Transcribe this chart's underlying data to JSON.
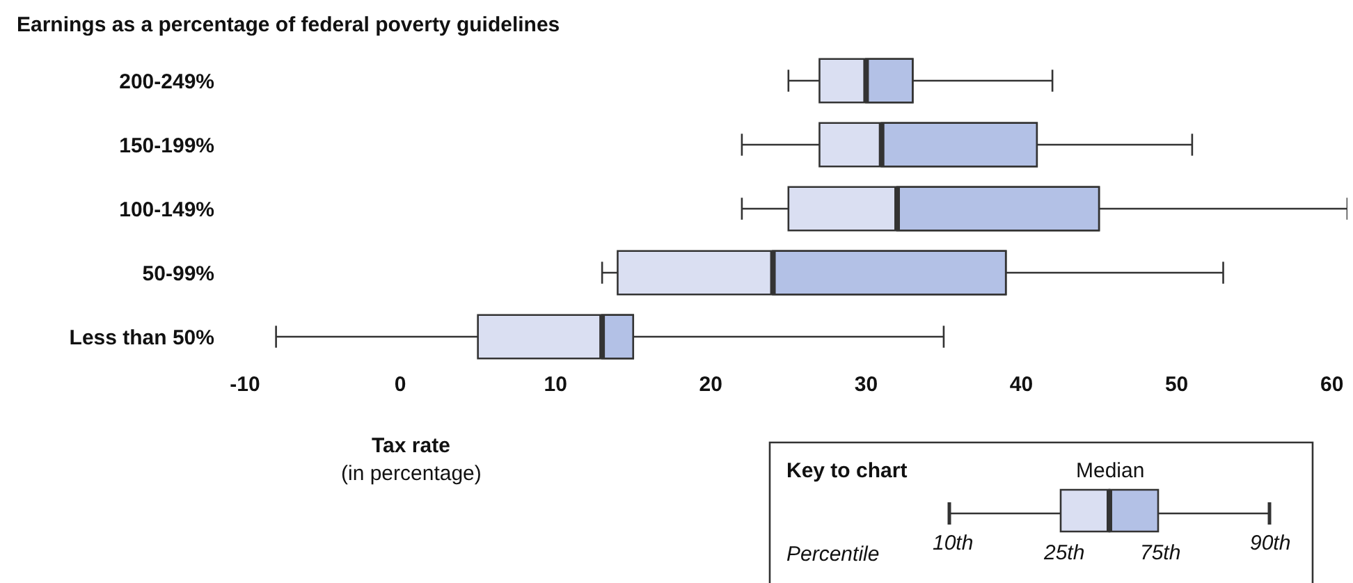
{
  "chart_data": {
    "type": "box",
    "orientation": "horizontal",
    "title": "Earnings as a percentage of federal poverty guidelines",
    "xlabel": "Tax rate",
    "categories": [
      "200-249%",
      "150-199%",
      "100-149%",
      "50-99%",
      "Less than 50%"
    ],
    "boxes": [
      {
        "low": 25,
        "q1": 27,
        "median": 30,
        "q3": 33,
        "high": 42
      },
      {
        "low": 22,
        "q1": 27,
        "median": 31,
        "q3": 41,
        "high": 51
      },
      {
        "low": 22,
        "q1": 25,
        "median": 32,
        "q3": 45,
        "high": 61
      },
      {
        "low": 13,
        "q1": 14,
        "median": 24,
        "q3": 39,
        "high": 53
      },
      {
        "low": -8,
        "q1": 5,
        "median": 13,
        "q3": 15,
        "high": 35
      }
    ],
    "color": "#dadff2",
    "xlim": [
      -10,
      61
    ],
    "xticks": [
      -10,
      0,
      10,
      20,
      30,
      40,
      50,
      60
    ],
    "annotations": [
      "(in percentage)",
      "Key to chart",
      "Median",
      "Percentile",
      "10th",
      "25th",
      "75th",
      "90th"
    ]
  }
}
